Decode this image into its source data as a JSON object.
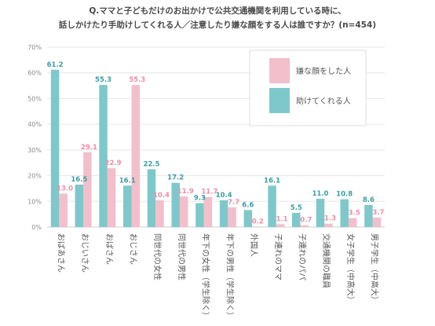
{
  "chart_data": {
    "type": "bar",
    "title_lines": [
      "Q.ママと子どもだけのお出かけで公共交通機関を利用している時に、",
      "話しかけたり手助けしてくれる人／注意したり嫌な顔をする人は誰ですか？(n=454)"
    ],
    "y_ticks": [
      "0%",
      "10%",
      "20%",
      "30%",
      "40%",
      "50%",
      "60%",
      "70%"
    ],
    "ylim": [
      0,
      70
    ],
    "grid": true,
    "legend_position": "top-right",
    "categories": [
      "おばあさん",
      "おじいさん",
      "おばさん",
      "おじさん",
      "同世代の女性",
      "同世代の男性",
      "年下の女性（学生除く）",
      "年下の男性（学生除く）",
      "外国人",
      "子連れのママ",
      "子連れのパパ",
      "交通機関の職員",
      "女子学生（中高大）",
      "男子学生（中高大）"
    ],
    "series": [
      {
        "name": "助けてくれる人",
        "color": "#7ec8cc",
        "label_color": "#3a9ea4",
        "values": [
          61.2,
          16.5,
          55.3,
          16.1,
          22.5,
          17.2,
          9.3,
          10.4,
          6.6,
          16.1,
          5.5,
          11.0,
          10.8,
          8.6
        ],
        "labels": [
          "61.2",
          "16.5",
          "55.3",
          "16.1",
          "22.5",
          "17.2",
          "9.3",
          "10.4",
          "6.6",
          "16.1",
          "5.5",
          "11.0",
          "10.8",
          "8.6"
        ]
      },
      {
        "name": "嫌な顔をした人",
        "color": "#f2bfcb",
        "label_color": "#ee8fa6",
        "values": [
          13.0,
          29.1,
          22.9,
          55.3,
          10.4,
          11.9,
          11.7,
          7.7,
          0.2,
          1.1,
          0.7,
          1.3,
          3.5,
          3.7
        ],
        "labels": [
          "13.0",
          "29.1",
          "22.9",
          "55.3",
          "10.4",
          "11.9",
          "11.7",
          "7.7",
          "0.2",
          "1.1",
          "0.7",
          "1.3",
          "3.5",
          "3.7"
        ]
      }
    ]
  }
}
